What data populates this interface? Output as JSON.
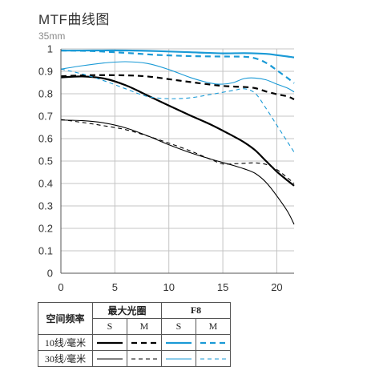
{
  "title": "MTF曲线图",
  "subtitle": "35mm",
  "chart_data": {
    "type": "line",
    "xlim": [
      0,
      21.6
    ],
    "ylim": [
      0,
      1
    ],
    "x_ticks": [
      0,
      5,
      10,
      15,
      20
    ],
    "x_tick_labels": [
      "0",
      "5",
      "10",
      "15",
      "20"
    ],
    "y_ticks": [
      0,
      0.1,
      0.2,
      0.3,
      0.4,
      0.5,
      0.6,
      0.7,
      0.8,
      0.9,
      1
    ],
    "y_tick_labels": [
      "0",
      "0.1",
      "0.2",
      "0.3",
      "0.4",
      "0.5",
      "0.6",
      "0.7",
      "0.8",
      "0.9",
      "1"
    ],
    "grid": true,
    "series": [
      {
        "key": "max_10_S",
        "color": "#000000",
        "width": 2.2,
        "dash": "",
        "points": [
          [
            0,
            0.873
          ],
          [
            2,
            0.877
          ],
          [
            4,
            0.868
          ],
          [
            6,
            0.838
          ],
          [
            8,
            0.793
          ],
          [
            10,
            0.747
          ],
          [
            12,
            0.703
          ],
          [
            14,
            0.66
          ],
          [
            16,
            0.61
          ],
          [
            17,
            0.583
          ],
          [
            18,
            0.548
          ],
          [
            19,
            0.5
          ],
          [
            20,
            0.453
          ],
          [
            21,
            0.413
          ],
          [
            21.6,
            0.39
          ]
        ]
      },
      {
        "key": "max_10_M",
        "color": "#000000",
        "width": 2.2,
        "dash": "7,5",
        "points": [
          [
            0,
            0.878
          ],
          [
            3,
            0.883
          ],
          [
            6,
            0.882
          ],
          [
            8,
            0.877
          ],
          [
            10,
            0.865
          ],
          [
            12,
            0.852
          ],
          [
            14,
            0.84
          ],
          [
            15,
            0.835
          ],
          [
            16,
            0.832
          ],
          [
            17,
            0.83
          ],
          [
            18,
            0.825
          ],
          [
            19,
            0.81
          ],
          [
            20,
            0.798
          ],
          [
            21,
            0.788
          ],
          [
            21.6,
            0.775
          ]
        ]
      },
      {
        "key": "max_30_S",
        "color": "#000000",
        "width": 1.1,
        "dash": "",
        "points": [
          [
            0,
            0.683
          ],
          [
            2,
            0.68
          ],
          [
            4,
            0.67
          ],
          [
            6,
            0.648
          ],
          [
            8,
            0.613
          ],
          [
            10,
            0.573
          ],
          [
            12,
            0.537
          ],
          [
            14,
            0.507
          ],
          [
            16,
            0.48
          ],
          [
            17,
            0.465
          ],
          [
            18,
            0.445
          ],
          [
            19,
            0.405
          ],
          [
            20,
            0.345
          ],
          [
            21,
            0.275
          ],
          [
            21.6,
            0.218
          ]
        ]
      },
      {
        "key": "max_30_M",
        "color": "#000000",
        "width": 1.1,
        "dash": "5,4",
        "points": [
          [
            0,
            0.685
          ],
          [
            2,
            0.672
          ],
          [
            4,
            0.657
          ],
          [
            6,
            0.64
          ],
          [
            8,
            0.612
          ],
          [
            10,
            0.58
          ],
          [
            12,
            0.545
          ],
          [
            14,
            0.505
          ],
          [
            15,
            0.487
          ],
          [
            16,
            0.488
          ],
          [
            17,
            0.49
          ],
          [
            18,
            0.492
          ],
          [
            19,
            0.485
          ],
          [
            20,
            0.462
          ],
          [
            21,
            0.425
          ],
          [
            21.6,
            0.4
          ]
        ]
      },
      {
        "key": "f8_10_S",
        "color": "#1a9ad6",
        "width": 2.2,
        "dash": "",
        "points": [
          [
            0,
            0.992
          ],
          [
            3,
            0.993
          ],
          [
            6,
            0.993
          ],
          [
            9,
            0.99
          ],
          [
            12,
            0.985
          ],
          [
            15,
            0.98
          ],
          [
            17,
            0.981
          ],
          [
            19,
            0.978
          ],
          [
            20,
            0.972
          ],
          [
            21,
            0.966
          ],
          [
            21.6,
            0.962
          ]
        ]
      },
      {
        "key": "f8_10_M",
        "color": "#1a9ad6",
        "width": 2.2,
        "dash": "7,5",
        "points": [
          [
            0,
            0.993
          ],
          [
            3,
            0.99
          ],
          [
            6,
            0.982
          ],
          [
            9,
            0.973
          ],
          [
            12,
            0.968
          ],
          [
            15,
            0.966
          ],
          [
            17,
            0.965
          ],
          [
            18,
            0.958
          ],
          [
            19,
            0.938
          ],
          [
            20,
            0.905
          ],
          [
            21,
            0.87
          ],
          [
            21.6,
            0.847
          ]
        ]
      },
      {
        "key": "f8_30_S",
        "color": "#1a9ad6",
        "width": 1.1,
        "dash": "",
        "points": [
          [
            0,
            0.91
          ],
          [
            2,
            0.925
          ],
          [
            4,
            0.937
          ],
          [
            6,
            0.943
          ],
          [
            8,
            0.935
          ],
          [
            10,
            0.908
          ],
          [
            12,
            0.872
          ],
          [
            14,
            0.846
          ],
          [
            15,
            0.843
          ],
          [
            16,
            0.85
          ],
          [
            17,
            0.868
          ],
          [
            18,
            0.87
          ],
          [
            19,
            0.862
          ],
          [
            20,
            0.843
          ],
          [
            21,
            0.825
          ],
          [
            21.6,
            0.808
          ]
        ]
      },
      {
        "key": "f8_30_M",
        "color": "#1a9ad6",
        "width": 1.1,
        "dash": "5,4",
        "points": [
          [
            0,
            0.91
          ],
          [
            2,
            0.888
          ],
          [
            4,
            0.858
          ],
          [
            6,
            0.822
          ],
          [
            8,
            0.788
          ],
          [
            10,
            0.778
          ],
          [
            12,
            0.782
          ],
          [
            14,
            0.798
          ],
          [
            16,
            0.815
          ],
          [
            17,
            0.822
          ],
          [
            18,
            0.802
          ],
          [
            19,
            0.735
          ],
          [
            20,
            0.66
          ],
          [
            21,
            0.585
          ],
          [
            21.6,
            0.54
          ]
        ]
      }
    ]
  },
  "legend": {
    "header_freq": "空间频率",
    "header_max": "最大光圈",
    "header_f8": "F8",
    "s": "S",
    "m": "M",
    "row_10": "10线/毫米",
    "row_30": "30线/毫米"
  }
}
